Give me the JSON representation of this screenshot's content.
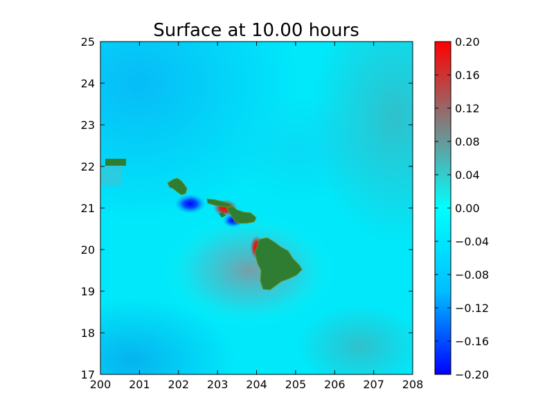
{
  "chart_data": {
    "type": "heatmap",
    "title": "Surface at 10.00 hours",
    "xlabel": "",
    "ylabel": "",
    "xlim": [
      200,
      208
    ],
    "ylim": [
      17,
      25
    ],
    "x_ticks": [
      "200",
      "201",
      "202",
      "203",
      "204",
      "205",
      "206",
      "207",
      "208"
    ],
    "y_ticks": [
      "17",
      "18",
      "19",
      "20",
      "21",
      "22",
      "23",
      "24",
      "25"
    ],
    "colorbar": {
      "range": [
        -0.2,
        0.2
      ],
      "ticks": [
        "0.20",
        "0.16",
        "0.12",
        "0.08",
        "0.04",
        "0.00",
        "−0.04",
        "−0.08",
        "−0.12",
        "−0.16",
        "−0.20"
      ],
      "colors": {
        "low": "#0000ff",
        "mid_low": "#00bfff",
        "zero": "#00ffff",
        "mid_high": "#808080",
        "high": "#ff0000"
      }
    },
    "land_color": "#2e7d32",
    "surface_features": [
      {
        "label": "island-niihau-kauai",
        "lon": 200.3,
        "lat": 22.1,
        "type": "land"
      },
      {
        "label": "island-oahu",
        "lon": 202.0,
        "lat": 21.5,
        "type": "land"
      },
      {
        "label": "island-molokai",
        "lon": 203.0,
        "lat": 21.1,
        "type": "land"
      },
      {
        "label": "island-maui",
        "lon": 203.6,
        "lat": 20.8,
        "type": "land"
      },
      {
        "label": "island-hawaii",
        "lon": 204.4,
        "lat": 19.6,
        "type": "land"
      },
      {
        "label": "trough-oahu",
        "lon": 202.3,
        "lat": 21.1,
        "value": -0.2
      },
      {
        "label": "trough-maui",
        "lon": 203.4,
        "lat": 20.7,
        "value": -0.2
      },
      {
        "label": "crest-molokai",
        "lon": 203.2,
        "lat": 21.0,
        "value": 0.2
      },
      {
        "label": "crest-hawaii-nw",
        "lon": 204.0,
        "lat": 20.05,
        "value": 0.2
      }
    ]
  }
}
